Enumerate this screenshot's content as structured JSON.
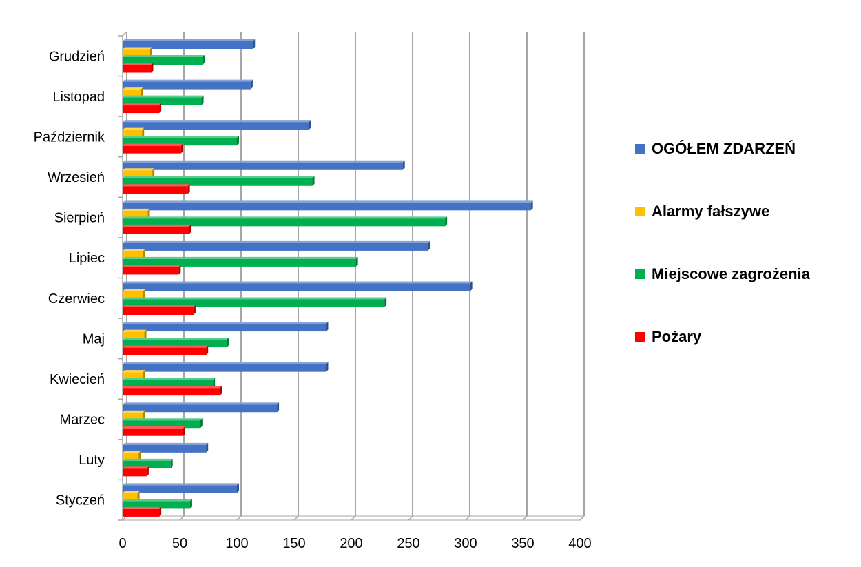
{
  "chart_data": {
    "type": "bar",
    "orientation": "horizontal",
    "categories": [
      "Styczeń",
      "Luty",
      "Marzec",
      "Kwiecień",
      "Maj",
      "Czerwiec",
      "Lipiec",
      "Sierpień",
      "Wrzesień",
      "Październik",
      "Listopad",
      "Grudzień"
    ],
    "series": [
      {
        "name": "OGÓŁEM ZDARZEŃ",
        "color": "#4472C4",
        "values": [
          100,
          73,
          135,
          178,
          178,
          304,
          267,
          357,
          245,
          163,
          112,
          114
        ]
      },
      {
        "name": "Alarmy fałszywe",
        "color": "#FFC000",
        "values": [
          13,
          14,
          18,
          18,
          19,
          18,
          18,
          22,
          26,
          17,
          16,
          24
        ]
      },
      {
        "name": "Miejscowe zagrożenia",
        "color": "#00B050",
        "values": [
          59,
          42,
          68,
          79,
          91,
          229,
          204,
          282,
          166,
          100,
          69,
          70
        ]
      },
      {
        "name": "Pożary",
        "color": "#FF0000",
        "values": [
          32,
          21,
          53,
          85,
          73,
          62,
          49,
          58,
          57,
          51,
          32,
          25
        ]
      }
    ],
    "xlim": [
      0,
      400
    ],
    "x_ticks": [
      "0",
      "50",
      "100",
      "150",
      "200",
      "250",
      "300",
      "350",
      "400"
    ],
    "grid": "vertical major gridlines",
    "legend_position": "right"
  }
}
